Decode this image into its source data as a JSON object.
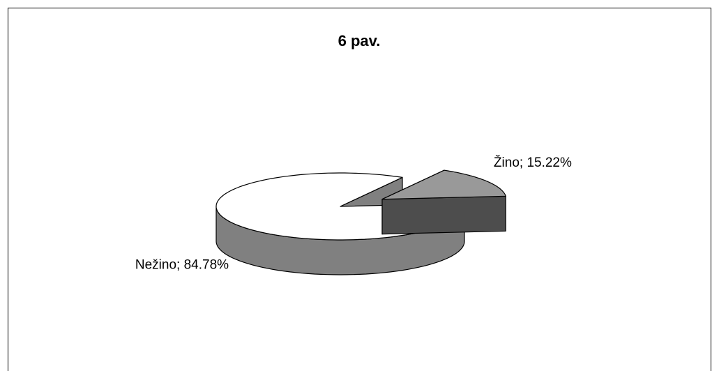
{
  "chart_data": {
    "type": "pie3d",
    "title": "6 pav.",
    "categories": [
      "Nežino",
      "Žino"
    ],
    "values": [
      84.78,
      15.22
    ],
    "value_labels": [
      "84.78%",
      "15.22%"
    ],
    "label_separator": "; ",
    "colors": [
      "#ffffff",
      "#999999"
    ],
    "exploded": [
      false,
      true
    ]
  }
}
